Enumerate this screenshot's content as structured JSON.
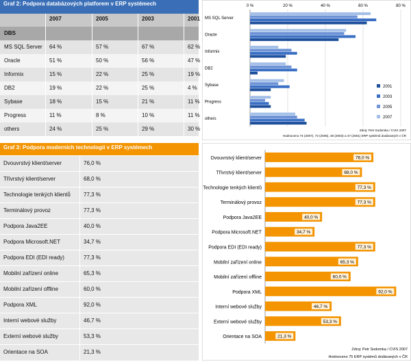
{
  "graf2": {
    "title": "Graf 2: Podpora databázových platforem v ERP systémech",
    "years": [
      "2007",
      "2005",
      "2003",
      "2001"
    ],
    "section_label": "DBS",
    "rows": [
      {
        "label": "MS SQL Server",
        "cells": [
          "64 %",
          "57 %",
          "67 %",
          "62 %"
        ]
      },
      {
        "label": "Oracle",
        "cells": [
          "51 %",
          "50 %",
          "56 %",
          "47 %"
        ]
      },
      {
        "label": "Informix",
        "cells": [
          "15 %",
          "22 %",
          "25 %",
          "19 %"
        ]
      },
      {
        "label": "DB2",
        "cells": [
          "19 %",
          "22 %",
          "25 %",
          "4 %"
        ]
      },
      {
        "label": "Sybase",
        "cells": [
          "18 %",
          "15 %",
          "21 %",
          "11 %"
        ]
      },
      {
        "label": "Progress",
        "cells": [
          "11 %",
          "8 %",
          "10 %",
          "11 %"
        ]
      },
      {
        "label": "others",
        "cells": [
          "24 %",
          "25 %",
          "29 %",
          "30 %"
        ]
      }
    ]
  },
  "graf3": {
    "title": "Graf 3: Podpora moderních technologií v ERP systémech",
    "rows": [
      {
        "label": "Dvouvrstvý klient/server",
        "value": "76,0 %"
      },
      {
        "label": "Třívrstvý klient/server",
        "value": "68,0 %"
      },
      {
        "label": "Technologie tenkých klientů",
        "value": "77,3 %"
      },
      {
        "label": "Terminálový provoz",
        "value": "77,3 %"
      },
      {
        "label": "Podpora Java2EE",
        "value": "40,0 %"
      },
      {
        "label": "Podpora Microsoft.NET",
        "value": "34,7 %"
      },
      {
        "label": "Podpora EDI (EDI ready)",
        "value": "77,3 %"
      },
      {
        "label": "Mobilní zařízení online",
        "value": "65,3 %"
      },
      {
        "label": "Mobilní zařízení offline",
        "value": "60,0 %"
      },
      {
        "label": "Podpora XML",
        "value": "92,0 %"
      },
      {
        "label": "Interní webové služby",
        "value": "46,7 %"
      },
      {
        "label": "Externí webové služby",
        "value": "53,3 %"
      },
      {
        "label": "Orientace na SOA",
        "value": "21,3 %"
      }
    ]
  },
  "chart_data": [
    {
      "type": "bar",
      "orientation": "horizontal",
      "title": "",
      "categories": [
        "MS SQL Server",
        "Oracle",
        "Informix",
        "DB2",
        "Sybase",
        "Progress",
        "others"
      ],
      "series": [
        {
          "name": "2001",
          "values": [
            62,
            47,
            19,
            4,
            11,
            11,
            30
          ],
          "color": "#1e4f9c"
        },
        {
          "name": "2003",
          "values": [
            67,
            56,
            25,
            25,
            21,
            10,
            29
          ],
          "color": "#3a6fc4"
        },
        {
          "name": "2005",
          "values": [
            57,
            50,
            22,
            22,
            15,
            8,
            25
          ],
          "color": "#6d93d6"
        },
        {
          "name": "2007",
          "values": [
            64,
            51,
            15,
            19,
            18,
            11,
            24
          ],
          "color": "#a3bfe8"
        }
      ],
      "xticks": [
        "0 %",
        "20 %",
        "40 %",
        "60 %",
        "80 %"
      ],
      "xlim": [
        0,
        80
      ],
      "legend_position": "bottom-right",
      "source_lines": [
        "Zdroj: Petr Sodomka / CVIS 2007",
        "Hodnoceno 74 (2007), 72 (2005), 48 (2003) a 47 (2001) ERP systémů dodávaných v ČR"
      ]
    },
    {
      "type": "bar",
      "orientation": "horizontal",
      "title": "",
      "categories": [
        "Dvouvrstvý klient/server",
        "Třívrstvý klient/server",
        "Technologie tenkých klientů",
        "Terminálový provoz",
        "Podpora Java2EE",
        "Podpora Microsoft.NET",
        "Podpora EDI (EDI ready)",
        "Mobilní zařízení online",
        "Mobilní zařízení offline",
        "Podpora XML",
        "Interní webové služby",
        "Externí webové služby",
        "Orientace na SOA"
      ],
      "values": [
        76.0,
        68.0,
        77.3,
        77.3,
        40.0,
        34.7,
        77.3,
        65.3,
        60.0,
        92.0,
        46.7,
        53.3,
        21.3
      ],
      "value_labels": [
        "76,0 %",
        "68,0 %",
        "77,3 %",
        "77,3 %",
        "40,0 %",
        "34,7 %",
        "77,3 %",
        "65,3 %",
        "60,0 %",
        "92,0 %",
        "46,7 %",
        "53,3 %",
        "21,3 %"
      ],
      "xlim": [
        0,
        100
      ],
      "bar_color": "#f39400",
      "source_lines": [
        "Zdroj: Petr Sodomka / CVIS 2007",
        "Hodnoceno 75 ERP systémů dodávaných v ČR"
      ]
    }
  ]
}
